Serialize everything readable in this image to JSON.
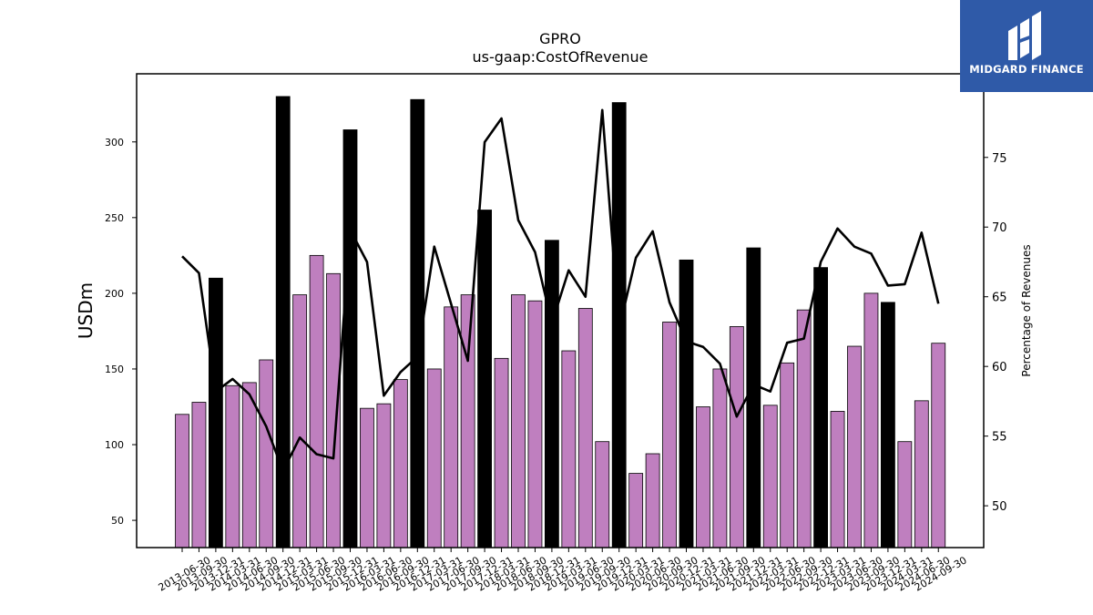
{
  "brand": {
    "name": "MIDGARD FINANCE",
    "bg_color": "#2f5aa8"
  },
  "chart_data": {
    "type": "bar",
    "title": "GPRO",
    "subtitle": "us-gaap:CostOfRevenue",
    "ylabel": "USDm",
    "y2label": "Percentage of Revenues",
    "ylim": [
      32,
      345
    ],
    "y2lim": [
      47,
      81
    ],
    "yticks": [
      50,
      100,
      150,
      200,
      250,
      300
    ],
    "y2ticks": [
      50,
      55,
      60,
      65,
      70,
      75
    ],
    "categories": [
      "2013-06-30",
      "2013-09-30",
      "2013-12-31",
      "2014-03-31",
      "2014-06-30",
      "2014-09-30",
      "2014-12-31",
      "2015-03-31",
      "2015-06-30",
      "2015-09-30",
      "2015-12-31",
      "2016-03-31",
      "2016-06-30",
      "2016-09-30",
      "2016-12-31",
      "2017-03-31",
      "2017-06-30",
      "2017-09-30",
      "2017-12-31",
      "2018-03-31",
      "2018-06-30",
      "2018-09-30",
      "2018-12-31",
      "2019-03-31",
      "2019-06-30",
      "2019-09-30",
      "2019-12-31",
      "2020-03-31",
      "2020-06-30",
      "2020-09-30",
      "2020-12-31",
      "2021-03-31",
      "2021-06-30",
      "2021-09-30",
      "2021-12-31",
      "2022-03-31",
      "2022-06-30",
      "2022-09-30",
      "2022-12-31",
      "2023-03-31",
      "2023-06-30",
      "2023-09-30",
      "2023-12-31",
      "2024-03-31",
      "2024-06-30",
      "2024-09-30"
    ],
    "series": [
      {
        "kind": "bar",
        "values": [
          120,
          128,
          210,
          139,
          141,
          156,
          330,
          199,
          225,
          213,
          308,
          124,
          127,
          143,
          328,
          150,
          191,
          199,
          255,
          157,
          199,
          195,
          235,
          162,
          190,
          102,
          326,
          81,
          94,
          181,
          222,
          125,
          150,
          178,
          230,
          126,
          154,
          189,
          217,
          122,
          165,
          200,
          194,
          102,
          129,
          167
        ],
        "colors": {
          "quarter": "#bf7fbf",
          "year_end": "#000000"
        }
      },
      {
        "kind": "line",
        "axis": "right",
        "color": "#000000",
        "values": [
          67.9,
          66.7,
          58.2,
          59.1,
          58.0,
          55.7,
          52.5,
          54.9,
          53.7,
          53.4,
          69.8,
          67.5,
          57.9,
          59.6,
          60.7,
          68.6,
          64.5,
          60.4,
          76.1,
          77.8,
          70.5,
          68.2,
          63.1,
          66.9,
          65.0,
          78.4,
          62.7,
          67.8,
          69.7,
          64.6,
          61.8,
          61.4,
          60.2,
          56.4,
          58.7,
          58.2,
          61.7,
          62.0,
          67.5,
          69.9,
          68.6,
          68.1,
          65.8,
          65.9,
          69.6,
          64.5
        ]
      }
    ]
  }
}
